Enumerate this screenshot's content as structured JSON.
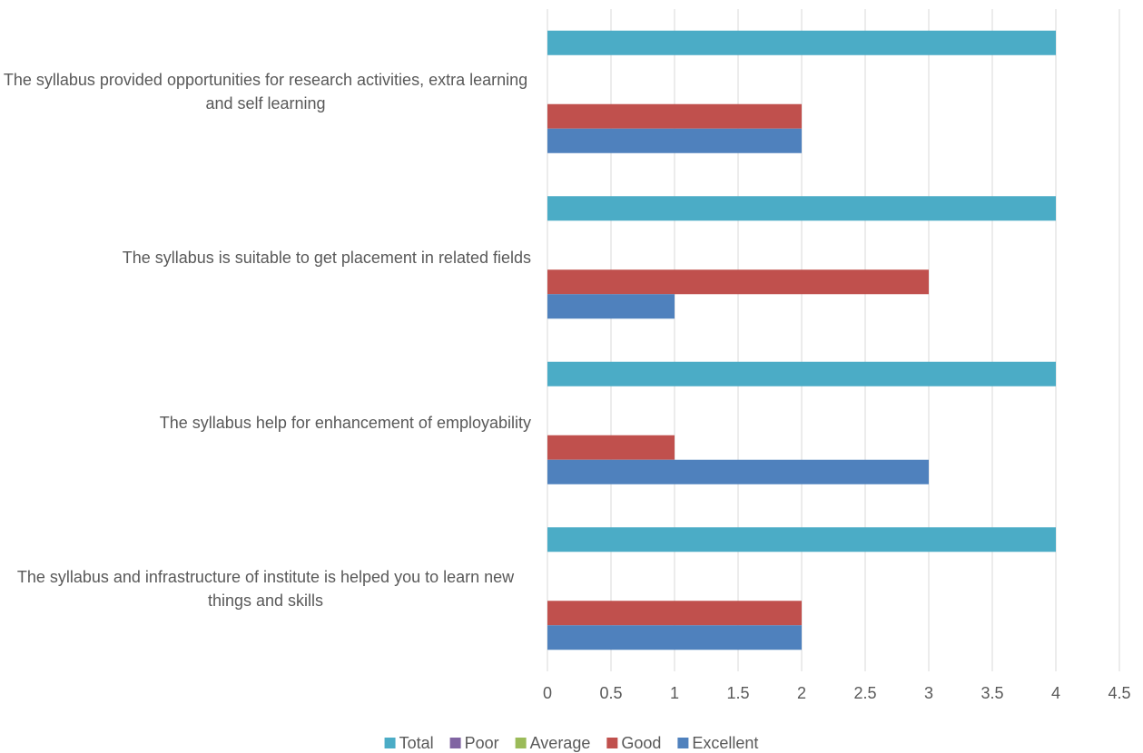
{
  "chart_data": {
    "type": "bar",
    "orientation": "horizontal",
    "categories": [
      "The syllabus provided opportunities for research activities, extra learning and self learning",
      "The syllabus is suitable to get placement in related fields",
      "The syllabus help for enhancement of employability",
      "The syllabus and infrastructure of institute is helped you to learn new things and skills"
    ],
    "series": [
      {
        "name": "Total",
        "color": "#4bacc6",
        "values": [
          4,
          4,
          4,
          4
        ]
      },
      {
        "name": "Poor",
        "color": "#8064a2",
        "values": [
          0,
          0,
          0,
          0
        ]
      },
      {
        "name": "Average",
        "color": "#9bbb59",
        "values": [
          0,
          0,
          0,
          0
        ]
      },
      {
        "name": "Good",
        "color": "#c0504d",
        "values": [
          2,
          3,
          1,
          2
        ]
      },
      {
        "name": "Excellent",
        "color": "#4f81bd",
        "values": [
          2,
          1,
          3,
          2
        ]
      }
    ],
    "xlim": [
      0,
      4.5
    ],
    "xticks": [
      0,
      0.5,
      1,
      1.5,
      2,
      2.5,
      3,
      3.5,
      4,
      4.5
    ],
    "grid": true,
    "legend": "bottom"
  }
}
